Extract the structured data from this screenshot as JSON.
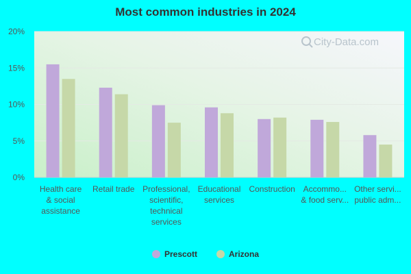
{
  "chart_data": {
    "type": "bar",
    "title": "Most common industries in 2024",
    "xlabel": "",
    "ylabel": "",
    "ylim": [
      0,
      20
    ],
    "yticks": [
      "0%",
      "5%",
      "10%",
      "15%",
      "20%"
    ],
    "grid": true,
    "legend_position": "bottom",
    "categories": [
      [
        "Health care",
        "& social",
        "assistance"
      ],
      [
        "Retail trade"
      ],
      [
        "Professional,",
        "scientific,",
        "technical",
        "services"
      ],
      [
        "Educational",
        "services"
      ],
      [
        "Construction"
      ],
      [
        "Accommo...",
        "& food serv..."
      ],
      [
        "Other servi...",
        "public adm..."
      ]
    ],
    "series": [
      {
        "name": "Prescott",
        "color": "#C0A8DA",
        "values": [
          15.5,
          12.3,
          9.9,
          9.6,
          8.0,
          7.9,
          5.8
        ]
      },
      {
        "name": "Arizona",
        "color": "#C6D8A8",
        "values": [
          13.5,
          11.4,
          7.5,
          8.8,
          8.2,
          7.6,
          4.5
        ]
      }
    ]
  },
  "watermark": {
    "text": "City-Data.com",
    "icon": "magnifier-icon"
  }
}
